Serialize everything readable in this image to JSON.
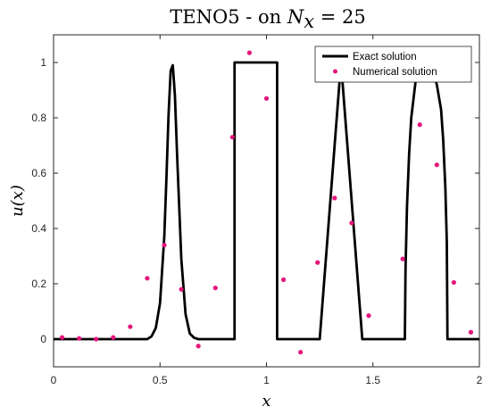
{
  "chart_data": {
    "type": "line",
    "title": "TENO5 - on N_x = 25",
    "title_parts": {
      "prefix": "TENO5 - on ",
      "var": "N",
      "sub": "x",
      "suffix": " = 25"
    },
    "xlabel": "x",
    "ylabel": "u(x)",
    "xlim": [
      0,
      2
    ],
    "ylim": [
      -0.1,
      1.1
    ],
    "x_ticks": [
      0,
      0.5,
      1,
      1.5,
      2
    ],
    "x_tick_labels": [
      "0",
      "0.5",
      "1",
      "1.5",
      "2"
    ],
    "y_ticks": [
      0,
      0.2,
      0.4,
      0.6,
      0.8,
      1
    ],
    "y_tick_labels": [
      "0",
      "0.2",
      "0.4",
      "0.6",
      "0.8",
      "1"
    ],
    "grid": false,
    "legend_position": "top-right",
    "series": [
      {
        "name": "Exact solution",
        "style": "line",
        "color": "#000000",
        "x": [
          0,
          0.44,
          0.46,
          0.48,
          0.5,
          0.52,
          0.53,
          0.54,
          0.55,
          0.56,
          0.57,
          0.58,
          0.6,
          0.62,
          0.64,
          0.66,
          0.68,
          0.85,
          0.85,
          1.05,
          1.05,
          1.25,
          1.35,
          1.45,
          1.65,
          1.653,
          1.66,
          1.67,
          1.68,
          1.7,
          1.72,
          1.75,
          1.78,
          1.8,
          1.82,
          1.83,
          1.84,
          1.847,
          1.85,
          2.0
        ],
        "y": [
          0,
          0.0,
          0.01,
          0.04,
          0.13,
          0.37,
          0.58,
          0.81,
          0.97,
          0.99,
          0.88,
          0.67,
          0.29,
          0.09,
          0.02,
          0.005,
          0.0,
          0.0,
          1.0,
          1.0,
          0.0,
          0.0,
          1.0,
          0.0,
          0.0,
          0.25,
          0.48,
          0.67,
          0.8,
          0.93,
          0.99,
          1.0,
          0.97,
          0.92,
          0.83,
          0.72,
          0.55,
          0.35,
          0.0,
          0.0
        ]
      },
      {
        "name": "Numerical solution",
        "style": "markers",
        "color": "#E5157D",
        "x": [
          0.04,
          0.12,
          0.2,
          0.28,
          0.36,
          0.44,
          0.52,
          0.6,
          0.68,
          0.76,
          0.84,
          0.92,
          1.0,
          1.08,
          1.16,
          1.24,
          1.32,
          1.4,
          1.48,
          1.56,
          1.64,
          1.72,
          1.8,
          1.88,
          1.96
        ],
        "y": [
          0.006,
          0.003,
          0.0,
          0.006,
          0.045,
          0.22,
          0.34,
          0.18,
          -0.025,
          0.185,
          0.73,
          1.035,
          0.87,
          0.215,
          -0.047,
          0.277,
          0.51,
          0.42,
          0.085,
          null,
          0.29,
          0.775,
          0.63,
          0.205,
          0.025
        ]
      }
    ]
  }
}
